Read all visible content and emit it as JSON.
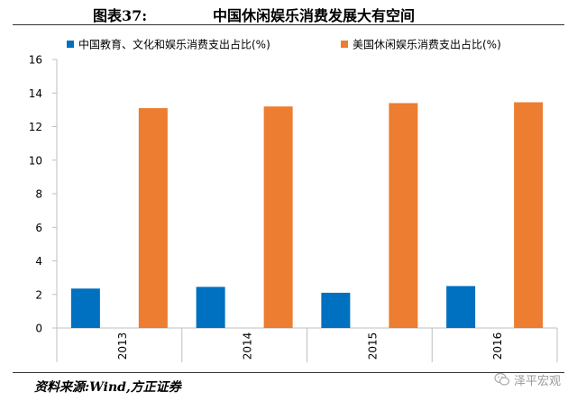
{
  "header": {
    "figure_label": "图表37:",
    "title": "中国休闲娱乐消费发展大有空间"
  },
  "footer": {
    "source": "资料来源:Wind,方正证券",
    "watermark_text": "泽平宏观",
    "watermark_icon": "wechat-icon"
  },
  "chart_data": {
    "type": "bar",
    "categories": [
      "2013",
      "2014",
      "2015",
      "2016"
    ],
    "series": [
      {
        "name": "中国教育、文化和娱乐消费支出占比(%)",
        "values": [
          2.35,
          2.45,
          2.1,
          2.5
        ],
        "color": "#0070c0"
      },
      {
        "name": "美国休闲娱乐消费支出占比(%)",
        "values": [
          13.1,
          13.2,
          13.4,
          13.45
        ],
        "color": "#ed7d31"
      }
    ],
    "ylim": [
      0,
      16
    ],
    "yticks": [
      0,
      2,
      4,
      6,
      8,
      10,
      12,
      14,
      16
    ],
    "grid": false,
    "legend_position": "top"
  }
}
